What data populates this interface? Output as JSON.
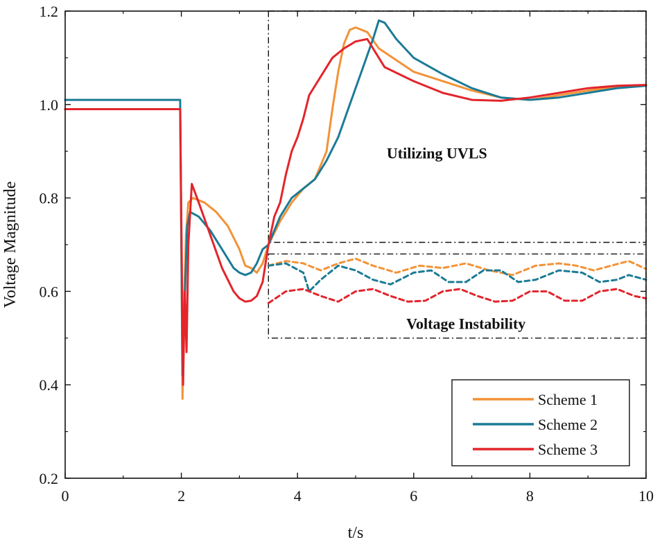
{
  "chart_data": {
    "type": "line",
    "title": "",
    "xlabel": "t/s",
    "ylabel": "Voltage Magnitude",
    "xlim": [
      0,
      10
    ],
    "ylim": [
      0.2,
      1.2
    ],
    "grid": false,
    "xticks": [
      0,
      2,
      4,
      6,
      8,
      10
    ],
    "xtick_labels": [
      "0",
      "2",
      "4",
      "6",
      "8",
      "10"
    ],
    "yticks": [
      0.2,
      0.4,
      0.6,
      0.8,
      1.0,
      1.2
    ],
    "ytick_labels": [
      "0.2",
      "0.4",
      "0.6",
      "0.8",
      "1.0",
      "1.2"
    ],
    "legend_position": "bottom-right",
    "annotations": [
      {
        "text": "Utilizing UVLS",
        "x": 6.4,
        "y": 0.885
      },
      {
        "text": "Voltage Instability",
        "x": 6.9,
        "y": 0.52
      }
    ],
    "boxes": [
      {
        "name": "uvls-box",
        "x0": 3.5,
        "x1": 10,
        "y0": 0.705,
        "y1": 1.2
      },
      {
        "name": "instability-box",
        "x0": 3.5,
        "x1": 10,
        "y0": 0.5,
        "y1": 0.68
      }
    ],
    "series": [
      {
        "name": "Scheme 1",
        "color": "#F39237",
        "style": "solid",
        "points": [
          [
            0,
            0.99
          ],
          [
            1.98,
            0.99
          ],
          [
            2.0,
            0.72
          ],
          [
            2.02,
            0.37
          ],
          [
            2.04,
            0.55
          ],
          [
            2.08,
            0.72
          ],
          [
            2.12,
            0.79
          ],
          [
            2.2,
            0.8
          ],
          [
            2.4,
            0.79
          ],
          [
            2.6,
            0.77
          ],
          [
            2.8,
            0.74
          ],
          [
            3.0,
            0.69
          ],
          [
            3.1,
            0.655
          ],
          [
            3.2,
            0.65
          ],
          [
            3.3,
            0.64
          ],
          [
            3.4,
            0.66
          ],
          [
            3.5,
            0.7
          ],
          [
            3.7,
            0.75
          ],
          [
            3.9,
            0.79
          ],
          [
            4.1,
            0.82
          ],
          [
            4.3,
            0.84
          ],
          [
            4.5,
            0.9
          ],
          [
            4.6,
            0.99
          ],
          [
            4.7,
            1.07
          ],
          [
            4.8,
            1.13
          ],
          [
            4.9,
            1.16
          ],
          [
            5.0,
            1.165
          ],
          [
            5.2,
            1.155
          ],
          [
            5.4,
            1.12
          ],
          [
            6.0,
            1.07
          ],
          [
            6.5,
            1.05
          ],
          [
            7.0,
            1.03
          ],
          [
            7.5,
            1.015
          ],
          [
            8.0,
            1.01
          ],
          [
            8.5,
            1.02
          ],
          [
            9.0,
            1.03
          ],
          [
            9.5,
            1.038
          ],
          [
            10,
            1.04
          ]
        ]
      },
      {
        "name": "Scheme 2",
        "color": "#1B7B95",
        "style": "solid",
        "points": [
          [
            0,
            1.01
          ],
          [
            1.98,
            1.01
          ],
          [
            2.0,
            0.7
          ],
          [
            2.02,
            0.42
          ],
          [
            2.05,
            0.55
          ],
          [
            2.1,
            0.74
          ],
          [
            2.15,
            0.77
          ],
          [
            2.3,
            0.76
          ],
          [
            2.5,
            0.73
          ],
          [
            2.7,
            0.69
          ],
          [
            2.9,
            0.65
          ],
          [
            3.0,
            0.64
          ],
          [
            3.1,
            0.635
          ],
          [
            3.2,
            0.64
          ],
          [
            3.3,
            0.66
          ],
          [
            3.4,
            0.69
          ],
          [
            3.5,
            0.7
          ],
          [
            3.7,
            0.76
          ],
          [
            3.9,
            0.8
          ],
          [
            4.1,
            0.82
          ],
          [
            4.3,
            0.84
          ],
          [
            4.5,
            0.88
          ],
          [
            4.7,
            0.93
          ],
          [
            4.9,
            1.0
          ],
          [
            5.1,
            1.07
          ],
          [
            5.3,
            1.14
          ],
          [
            5.4,
            1.18
          ],
          [
            5.5,
            1.175
          ],
          [
            5.7,
            1.14
          ],
          [
            6.0,
            1.1
          ],
          [
            6.5,
            1.065
          ],
          [
            7.0,
            1.035
          ],
          [
            7.5,
            1.015
          ],
          [
            8.0,
            1.01
          ],
          [
            8.5,
            1.015
          ],
          [
            9.0,
            1.025
          ],
          [
            9.5,
            1.035
          ],
          [
            10,
            1.04
          ]
        ]
      },
      {
        "name": "Scheme 3",
        "color": "#E3242B",
        "style": "solid",
        "points": [
          [
            0,
            0.99
          ],
          [
            1.98,
            0.99
          ],
          [
            2.0,
            0.75
          ],
          [
            2.03,
            0.4
          ],
          [
            2.06,
            0.6
          ],
          [
            2.09,
            0.47
          ],
          [
            2.12,
            0.7
          ],
          [
            2.18,
            0.83
          ],
          [
            2.3,
            0.79
          ],
          [
            2.5,
            0.72
          ],
          [
            2.7,
            0.65
          ],
          [
            2.9,
            0.6
          ],
          [
            3.0,
            0.585
          ],
          [
            3.1,
            0.578
          ],
          [
            3.2,
            0.58
          ],
          [
            3.3,
            0.59
          ],
          [
            3.4,
            0.62
          ],
          [
            3.5,
            0.7
          ],
          [
            3.6,
            0.76
          ],
          [
            3.7,
            0.79
          ],
          [
            3.8,
            0.85
          ],
          [
            3.9,
            0.9
          ],
          [
            4.0,
            0.93
          ],
          [
            4.1,
            0.97
          ],
          [
            4.2,
            1.02
          ],
          [
            4.4,
            1.06
          ],
          [
            4.6,
            1.1
          ],
          [
            4.8,
            1.12
          ],
          [
            5.0,
            1.135
          ],
          [
            5.2,
            1.14
          ],
          [
            5.3,
            1.12
          ],
          [
            5.5,
            1.08
          ],
          [
            6.0,
            1.05
          ],
          [
            6.5,
            1.025
          ],
          [
            7.0,
            1.01
          ],
          [
            7.5,
            1.008
          ],
          [
            8.0,
            1.015
          ],
          [
            8.5,
            1.025
          ],
          [
            9.0,
            1.035
          ],
          [
            9.5,
            1.04
          ],
          [
            10,
            1.042
          ]
        ]
      },
      {
        "name": "Scheme 1 (instability)",
        "color": "#F39237",
        "style": "dashed",
        "points": [
          [
            3.5,
            0.655
          ],
          [
            3.8,
            0.665
          ],
          [
            4.1,
            0.66
          ],
          [
            4.4,
            0.645
          ],
          [
            4.7,
            0.66
          ],
          [
            5.0,
            0.67
          ],
          [
            5.3,
            0.655
          ],
          [
            5.7,
            0.64
          ],
          [
            6.1,
            0.655
          ],
          [
            6.5,
            0.65
          ],
          [
            6.9,
            0.66
          ],
          [
            7.3,
            0.645
          ],
          [
            7.7,
            0.635
          ],
          [
            8.1,
            0.655
          ],
          [
            8.5,
            0.66
          ],
          [
            8.8,
            0.655
          ],
          [
            9.1,
            0.645
          ],
          [
            9.4,
            0.655
          ],
          [
            9.7,
            0.665
          ],
          [
            10,
            0.648
          ]
        ]
      },
      {
        "name": "Scheme 2 (instability)",
        "color": "#1B7B95",
        "style": "dashed",
        "points": [
          [
            3.5,
            0.655
          ],
          [
            3.8,
            0.66
          ],
          [
            4.1,
            0.64
          ],
          [
            4.2,
            0.6
          ],
          [
            4.4,
            0.625
          ],
          [
            4.7,
            0.655
          ],
          [
            5.0,
            0.645
          ],
          [
            5.3,
            0.625
          ],
          [
            5.6,
            0.615
          ],
          [
            6.0,
            0.64
          ],
          [
            6.3,
            0.645
          ],
          [
            6.6,
            0.62
          ],
          [
            6.9,
            0.62
          ],
          [
            7.2,
            0.645
          ],
          [
            7.5,
            0.645
          ],
          [
            7.8,
            0.62
          ],
          [
            8.1,
            0.625
          ],
          [
            8.5,
            0.645
          ],
          [
            8.9,
            0.64
          ],
          [
            9.2,
            0.62
          ],
          [
            9.5,
            0.625
          ],
          [
            9.7,
            0.635
          ],
          [
            10,
            0.625
          ]
        ]
      },
      {
        "name": "Scheme 3 (instability)",
        "color": "#E3242B",
        "style": "dashed",
        "points": [
          [
            3.5,
            0.575
          ],
          [
            3.8,
            0.6
          ],
          [
            4.1,
            0.605
          ],
          [
            4.4,
            0.59
          ],
          [
            4.7,
            0.578
          ],
          [
            5.0,
            0.6
          ],
          [
            5.3,
            0.605
          ],
          [
            5.6,
            0.59
          ],
          [
            5.9,
            0.578
          ],
          [
            6.2,
            0.58
          ],
          [
            6.5,
            0.6
          ],
          [
            6.8,
            0.605
          ],
          [
            7.1,
            0.59
          ],
          [
            7.4,
            0.578
          ],
          [
            7.7,
            0.58
          ],
          [
            8.0,
            0.6
          ],
          [
            8.3,
            0.6
          ],
          [
            8.6,
            0.58
          ],
          [
            8.9,
            0.58
          ],
          [
            9.2,
            0.6
          ],
          [
            9.5,
            0.605
          ],
          [
            9.8,
            0.59
          ],
          [
            10,
            0.585
          ]
        ]
      }
    ],
    "legend": [
      {
        "label": "Scheme 1",
        "color": "#F39237"
      },
      {
        "label": "Scheme 2",
        "color": "#1B7B95"
      },
      {
        "label": "Scheme 3",
        "color": "#E3242B"
      }
    ]
  }
}
